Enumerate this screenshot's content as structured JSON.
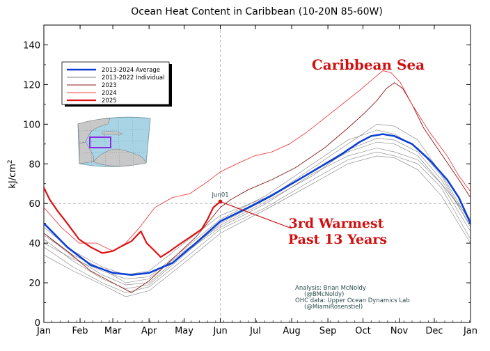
{
  "chart_data": {
    "type": "line",
    "title": "Ocean Heat Content in Caribbean (10-20N 85-60W)",
    "ylabel": "kJ/cm²",
    "ylabel_main": "kJ/cm",
    "ylabel_sup": "2",
    "xlabel": "",
    "ylim": [
      0,
      150
    ],
    "xlim": [
      0,
      365
    ],
    "y_ticks": [
      0,
      20,
      40,
      60,
      80,
      100,
      120,
      140
    ],
    "x_tick_days": [
      0,
      31,
      59,
      90,
      120,
      151,
      181,
      212,
      243,
      273,
      304,
      334,
      365
    ],
    "x_tick_labels": [
      "Jan",
      "Feb",
      "Mar",
      "Apr",
      "May",
      "Jun",
      "Jul",
      "Aug",
      "Sep",
      "Oct",
      "Nov",
      "Dec",
      "Jan"
    ],
    "grid": false,
    "reference_lines": {
      "horizontal_y": 60,
      "vertical_day": 151
    },
    "legend_position": "upper-left",
    "series": [
      {
        "name": "2013-2024 Average",
        "color": "#0b3fd4",
        "points": [
          [
            0,
            50
          ],
          [
            20,
            38
          ],
          [
            40,
            29
          ],
          [
            59,
            25
          ],
          [
            75,
            24
          ],
          [
            90,
            25
          ],
          [
            110,
            30
          ],
          [
            130,
            40
          ],
          [
            151,
            51
          ],
          [
            175,
            58
          ],
          [
            195,
            64
          ],
          [
            215,
            71
          ],
          [
            235,
            78
          ],
          [
            255,
            85
          ],
          [
            270,
            91
          ],
          [
            280,
            94
          ],
          [
            290,
            95
          ],
          [
            300,
            94
          ],
          [
            315,
            90
          ],
          [
            330,
            82
          ],
          [
            345,
            72
          ],
          [
            355,
            63
          ],
          [
            365,
            50
          ]
        ]
      },
      {
        "name": "2013-2022 Individual",
        "color": "#555555",
        "members": [
          [
            [
              0,
              45
            ],
            [
              25,
              33
            ],
            [
              50,
              24
            ],
            [
              70,
              19
            ],
            [
              90,
              20
            ],
            [
              120,
              35
            ],
            [
              151,
              48
            ],
            [
              190,
              60
            ],
            [
              230,
              75
            ],
            [
              260,
              84
            ],
            [
              285,
              88
            ],
            [
              300,
              86
            ],
            [
              320,
              82
            ],
            [
              340,
              70
            ],
            [
              365,
              46
            ]
          ],
          [
            [
              0,
              38
            ],
            [
              25,
              28
            ],
            [
              50,
              20
            ],
            [
              70,
              15
            ],
            [
              90,
              18
            ],
            [
              120,
              32
            ],
            [
              151,
              47
            ],
            [
              190,
              58
            ],
            [
              230,
              72
            ],
            [
              260,
              82
            ],
            [
              285,
              86
            ],
            [
              300,
              84
            ],
            [
              320,
              80
            ],
            [
              340,
              68
            ],
            [
              365,
              42
            ]
          ],
          [
            [
              0,
              42
            ],
            [
              25,
              31
            ],
            [
              50,
              22
            ],
            [
              70,
              17
            ],
            [
              90,
              19
            ],
            [
              120,
              34
            ],
            [
              151,
              50
            ],
            [
              190,
              62
            ],
            [
              230,
              78
            ],
            [
              260,
              90
            ],
            [
              285,
              100
            ],
            [
              300,
              99
            ],
            [
              320,
              92
            ],
            [
              340,
              75
            ],
            [
              365,
              50
            ]
          ],
          [
            [
              0,
              34
            ],
            [
              25,
              26
            ],
            [
              50,
              19
            ],
            [
              70,
              13
            ],
            [
              90,
              16
            ],
            [
              120,
              30
            ],
            [
              151,
              45
            ],
            [
              190,
              57
            ],
            [
              230,
              70
            ],
            [
              260,
              80
            ],
            [
              285,
              84
            ],
            [
              300,
              83
            ],
            [
              320,
              77
            ],
            [
              340,
              64
            ],
            [
              365,
              40
            ]
          ],
          [
            [
              0,
              40
            ],
            [
              25,
              32
            ],
            [
              50,
              26
            ],
            [
              70,
              22
            ],
            [
              90,
              23
            ],
            [
              120,
              37
            ],
            [
              151,
              52
            ],
            [
              190,
              64
            ],
            [
              230,
              80
            ],
            [
              260,
              92
            ],
            [
              285,
              97
            ],
            [
              300,
              95
            ],
            [
              320,
              88
            ],
            [
              340,
              74
            ],
            [
              365,
              48
            ]
          ],
          [
            [
              0,
              48
            ],
            [
              25,
              36
            ],
            [
              50,
              28
            ],
            [
              70,
              24
            ],
            [
              90,
              26
            ],
            [
              120,
              40
            ],
            [
              151,
              54
            ],
            [
              190,
              63
            ],
            [
              230,
              76
            ],
            [
              260,
              86
            ],
            [
              285,
              91
            ],
            [
              300,
              90
            ],
            [
              320,
              84
            ],
            [
              340,
              70
            ],
            [
              365,
              52
            ]
          ],
          [
            [
              0,
              44
            ],
            [
              25,
              34
            ],
            [
              50,
              27
            ],
            [
              70,
              20
            ],
            [
              90,
              22
            ],
            [
              120,
              36
            ],
            [
              151,
              49
            ],
            [
              190,
              61
            ],
            [
              230,
              74
            ],
            [
              260,
              87
            ],
            [
              285,
              93
            ],
            [
              300,
              92
            ],
            [
              320,
              86
            ],
            [
              340,
              72
            ],
            [
              365,
              49
            ]
          ]
        ]
      },
      {
        "name": "2023",
        "color": "#8b1a1a",
        "points": [
          [
            0,
            45
          ],
          [
            20,
            36
          ],
          [
            40,
            26
          ],
          [
            59,
            20
          ],
          [
            75,
            15
          ],
          [
            90,
            21
          ],
          [
            110,
            32
          ],
          [
            130,
            43
          ],
          [
            151,
            58
          ],
          [
            160,
            62
          ],
          [
            175,
            67
          ],
          [
            195,
            72
          ],
          [
            215,
            78
          ],
          [
            240,
            88
          ],
          [
            260,
            98
          ],
          [
            275,
            106
          ],
          [
            285,
            112
          ],
          [
            293,
            118
          ],
          [
            300,
            121
          ],
          [
            307,
            118
          ],
          [
            315,
            110
          ],
          [
            325,
            98
          ],
          [
            340,
            85
          ],
          [
            355,
            72
          ],
          [
            365,
            63
          ]
        ]
      },
      {
        "name": "2024",
        "color": "#ee4040",
        "points": [
          [
            0,
            58
          ],
          [
            15,
            48
          ],
          [
            30,
            40
          ],
          [
            45,
            40
          ],
          [
            59,
            36
          ],
          [
            70,
            40
          ],
          [
            82,
            48
          ],
          [
            95,
            58
          ],
          [
            110,
            63
          ],
          [
            125,
            65
          ],
          [
            140,
            71
          ],
          [
            151,
            76
          ],
          [
            165,
            80
          ],
          [
            180,
            84
          ],
          [
            195,
            86
          ],
          [
            210,
            90
          ],
          [
            225,
            96
          ],
          [
            240,
            103
          ],
          [
            255,
            110
          ],
          [
            270,
            117
          ],
          [
            280,
            122
          ],
          [
            290,
            127
          ],
          [
            297,
            126
          ],
          [
            305,
            121
          ],
          [
            315,
            110
          ],
          [
            330,
            96
          ],
          [
            345,
            84
          ],
          [
            355,
            74
          ],
          [
            365,
            66
          ]
        ]
      },
      {
        "name": "2025",
        "color": "#e01010",
        "points": [
          [
            0,
            68
          ],
          [
            5,
            62
          ],
          [
            12,
            56
          ],
          [
            20,
            50
          ],
          [
            30,
            42
          ],
          [
            40,
            38
          ],
          [
            50,
            35
          ],
          [
            59,
            36
          ],
          [
            65,
            38
          ],
          [
            75,
            41
          ],
          [
            83,
            46
          ],
          [
            88,
            40
          ],
          [
            95,
            36
          ],
          [
            100,
            33
          ],
          [
            108,
            36
          ],
          [
            115,
            39
          ],
          [
            125,
            43
          ],
          [
            135,
            47
          ],
          [
            140,
            52
          ],
          [
            145,
            58
          ],
          [
            151,
            61
          ]
        ]
      }
    ],
    "annotations": {
      "region": "Caribbean Sea",
      "callout_line1": "3rd Warmest",
      "callout_line2": "Past 13 Years",
      "point_label": "Jun01",
      "point_day": 151,
      "point_value": 61
    },
    "credits": [
      "Analysis: Brian McNoldy",
      "(@BMcNoldy)",
      "OHC data: Upper Ocean Dynamics Lab",
      "(@MiamiRosenstiel)"
    ]
  },
  "colors": {
    "map_ocean": "#a8d4e6",
    "map_land": "#c8c8c8",
    "region_box": "#8a2be2",
    "ref_line": "#aaaaaa"
  }
}
